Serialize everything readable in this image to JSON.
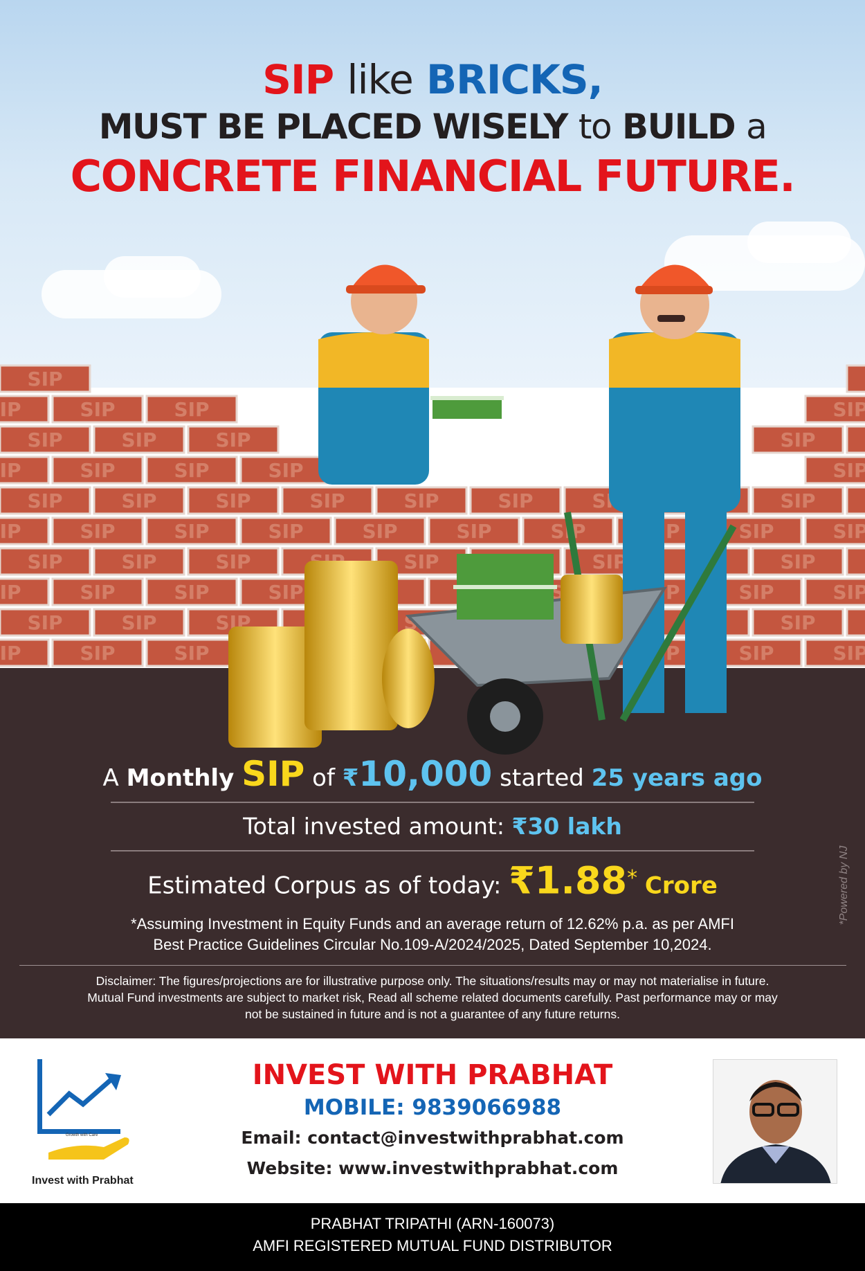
{
  "headline": {
    "l1_a": "SIP",
    "l1_b": "like",
    "l1_c": "BRICKS,",
    "l2_a": "MUST BE PLACED WISELY",
    "l2_b": "to",
    "l2_c": "BUILD",
    "l2_d": "a",
    "l3": "CONCRETE FINANCIAL FUTURE."
  },
  "brick_label": "SIP",
  "info": {
    "monthly": {
      "a": "A",
      "monthly": "Monthly",
      "sip": "SIP",
      "of": "of",
      "rupee": "₹",
      "amount": "10,000",
      "started": "started",
      "years": "25 years ago"
    },
    "invested": {
      "label": "Total invested amount:",
      "value": "₹30 lakh"
    },
    "corpus": {
      "label": "Estimated Corpus as of today:",
      "value": "₹1.88",
      "asterisk": "*",
      "unit": "Crore"
    },
    "assumption_1": "*Assuming Investment in Equity Funds and an average return of 12.62% p.a. as per AMFI",
    "assumption_2": "Best Practice  Guidelines Circular No.109-A/2024/2025, Dated September 10,2024.",
    "disclaimer_1": "Disclaimer: The figures/projections are for illustrative purpose only. The situations/results may or may not materialise in future.",
    "disclaimer_2": "Mutual Fund investments are subject to market risk, Read all scheme related documents carefully. Past performance may or may",
    "disclaimer_3": "not be sustained in future and is not a guarantee of any future returns.",
    "powered": "*Powered by NJ"
  },
  "contact": {
    "logo_tagline": "Growth with Care",
    "logo_name": "Invest with Prabhat",
    "title": "INVEST WITH PRABHAT",
    "mobile": "MOBILE: 9839066988",
    "email": "Email: contact@investwithprabhat.com",
    "website": "Website: www.investwithprabhat.com"
  },
  "footer": {
    "line1": "PRABHAT TRIPATHI (ARN-160073)",
    "line2": "AMFI REGISTERED MUTUAL FUND DISTRIBUTOR"
  },
  "colors": {
    "red": "#e3141b",
    "blue": "#1465b5",
    "yellow": "#f9d71c",
    "cyan": "#5ec3ef",
    "ground": "#3b2c2d",
    "brick": "#c4563f"
  }
}
